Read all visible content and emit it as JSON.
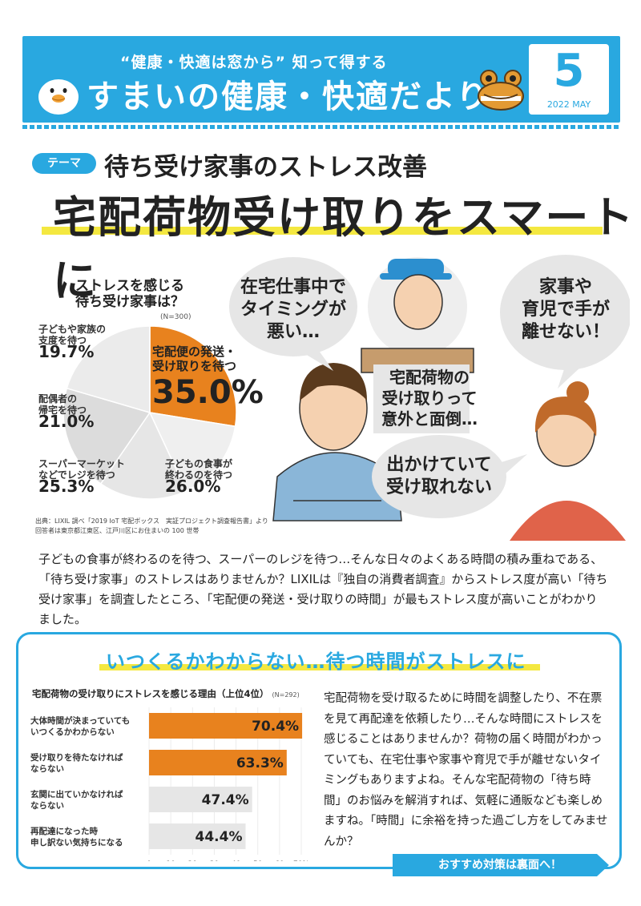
{
  "header": {
    "catch": "“健康・快適は窓から” 知って得する",
    "masthead": "すまいの健康・快適だより",
    "issue_number": "5",
    "issue_date": "2022 MAY"
  },
  "theme": {
    "badge": "テーマ",
    "subtitle": "待ち受け家事のストレス改善",
    "title": "宅配荷物受け取りをスマートに"
  },
  "pie": {
    "title_line1": "ストレスを感じる",
    "title_line2": "待ち受け家事は？",
    "n_note": "(N=300)",
    "items": [
      {
        "label1": "子どもや家族の",
        "label2": "支度を待つ",
        "value": "19.7%"
      },
      {
        "label1": "配偶者の",
        "label2": "帰宅を待つ",
        "value": "21.0%"
      },
      {
        "label1": "スーパーマーケット",
        "label2": "などでレジを待つ",
        "value": "25.3%"
      },
      {
        "label1": "子どもの食事が",
        "label2": "終わるのを待つ",
        "value": "26.0%"
      },
      {
        "label1": "宅配便の発送・",
        "label2": "受け取りを待つ",
        "value": "35.0%"
      }
    ],
    "source_line1": "出典：LIXIL 調べ「2019 IoT 宅配ボックス　実証プロジェクト調査報告書」より",
    "source_line2": "回答者は東京都江東区、江戸川区にお住まいの 100 世帯"
  },
  "bubbles": {
    "man_line1": "在宅仕事中で",
    "man_line2": "タイミングが",
    "man_line3": "悪い…",
    "courier_line1": "宅配荷物の",
    "courier_line2": "受け取りって",
    "courier_line3": "意外と面倒…",
    "woman_top_line1": "家事や",
    "woman_top_line2": "育児で手が",
    "woman_top_line3": "離せない！",
    "woman_bottom_line1": "出かけていて",
    "woman_bottom_line2": "受け取れない"
  },
  "intro": "子どもの食事が終わるのを待つ、スーパーのレジを待つ…そんな日々のよくある時間の積み重ねである、「待ち受け家事」のストレスはありませんか？LIXILは『独自の消費者調査』からストレス度が高い「待ち受け家事」を調査したところ、「宅配便の発送・受け取りの時間」が最もストレス度が高いことがわかりました。",
  "panel": {
    "title": "いつくるかわからない…待つ時間がストレスに",
    "text": "宅配荷物を受け取るために時間を調整したり、不在票を見て再配達を依頼したり…そんな時間にストレスを感じることはありませんか？荷物の届く時間がわかっていても、在宅仕事や家事や育児で手が離せないタイミングもありますよね。そんな宅配荷物の「待ち時間」のお悩みを解消すれば、気軽に通販なども楽しめますね。「時間」に余裕を持った過ごし方をしてみませんか？",
    "footer": "おすすめ対策は裏面へ！"
  },
  "chart_data": [
    {
      "type": "pie",
      "title": "ストレスを感じる待ち受け家事は？",
      "note": "(N=300)",
      "categories": [
        "宅配便の発送・受け取りを待つ",
        "子どもや家族の支度を待つ",
        "配偶者の帰宅を待つ",
        "スーパーマーケットなどでレジを待つ",
        "子どもの食事が終わるのを待つ"
      ],
      "values": [
        35.0,
        19.7,
        21.0,
        25.3,
        26.0
      ],
      "highlight": "#e8821e"
    },
    {
      "type": "bar",
      "title": "宅配荷物の受け取りにストレスを感じる理由（上位4位）",
      "note": "(N=292)",
      "categories": [
        "大体時間が決まっていてもいつくるかわからない",
        "受け取りを待たなければならない",
        "玄関に出ていかなければならない",
        "再配達になった時申し訳ない気持ちになる"
      ],
      "values": [
        70.4,
        63.3,
        47.4,
        44.4
      ],
      "value_labels": [
        "70.4%",
        "63.3%",
        "47.4%",
        "44.4%"
      ],
      "cat_line1": [
        "大体時間が決まっていても",
        "受け取りを待たなければ",
        "玄関に出ていかなければ",
        "再配達になった時"
      ],
      "cat_line2": [
        "いつくるかわからない",
        "ならない",
        "ならない",
        "申し訳ない気持ちになる"
      ],
      "xticks": [
        0,
        10,
        20,
        30,
        40,
        50,
        60,
        70
      ],
      "xtick_labels": [
        "0",
        "10",
        "20",
        "30",
        "40",
        "50",
        "60",
        "70%"
      ],
      "xlim": [
        0,
        70
      ],
      "colors": [
        "#e8821e",
        "#e8821e",
        "#e6e6e6",
        "#e6e6e6"
      ],
      "title_line": "宅配荷物の受け取りにストレスを感じる理由（上位4位）"
    }
  ]
}
